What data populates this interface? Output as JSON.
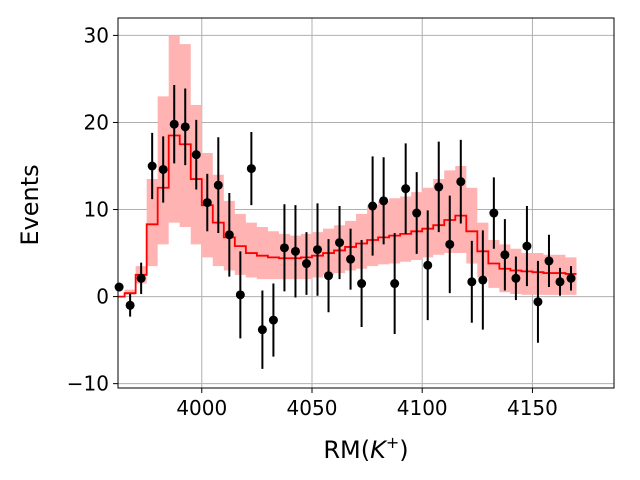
{
  "chart_data": {
    "type": "scatter",
    "title": "",
    "xlabel_main": "RM(",
    "xlabel_var": "K",
    "xlabel_sup": "+",
    "xlabel_end": ")",
    "ylabel": "Events",
    "xlim": [
      3962,
      4187
    ],
    "ylim": [
      -10.5,
      32
    ],
    "grid": true,
    "x_ticks": [
      4000,
      4050,
      4100,
      4150
    ],
    "y_ticks": [
      -10,
      0,
      10,
      20,
      30
    ],
    "x_tick_labels": [
      "4000",
      "4050",
      "4100",
      "4150"
    ],
    "y_tick_labels": [
      "−10",
      "0",
      "10",
      "20",
      "30"
    ],
    "colors": {
      "data": "#000000",
      "model": "#ff0000",
      "band": "#ffb3b3",
      "grid": "#b0b0b0"
    },
    "bin_edges": [
      3960,
      3965,
      3970,
      3975,
      3980,
      3985,
      3990,
      3995,
      4000,
      4005,
      4010,
      4015,
      4020,
      4025,
      4030,
      4035,
      4040,
      4045,
      4050,
      4055,
      4060,
      4065,
      4070,
      4075,
      4080,
      4085,
      4090,
      4095,
      4100,
      4105,
      4110,
      4115,
      4120,
      4125,
      4130,
      4135,
      4140,
      4145,
      4150,
      4155,
      4160,
      4165,
      4170
    ],
    "model": [
      0,
      0.4,
      2.5,
      8.3,
      12.5,
      18.5,
      17.5,
      13.5,
      10.5,
      8.5,
      6.8,
      5.8,
      5.0,
      4.7,
      4.5,
      4.4,
      4.4,
      4.5,
      4.7,
      5.0,
      5.3,
      5.7,
      6.1,
      6.5,
      6.8,
      7.0,
      7.2,
      7.5,
      7.8,
      8.2,
      8.8,
      9.3,
      7.5,
      5.2,
      3.8,
      3.2,
      3.0,
      2.9,
      2.8,
      2.7,
      2.7,
      2.6
    ],
    "band_lower": [
      0,
      0.2,
      1.5,
      3.5,
      6.0,
      8.5,
      8.0,
      6.0,
      4.5,
      3.5,
      3.0,
      2.5,
      2.2,
      2.0,
      2.0,
      2.0,
      2.0,
      2.0,
      2.2,
      2.5,
      2.7,
      3.0,
      3.2,
      3.5,
      3.7,
      3.8,
      4.0,
      4.2,
      4.5,
      4.8,
      5.0,
      5.0,
      3.8,
      2.2,
      1.0,
      0.5,
      0.3,
      0.2,
      0.2,
      0.2,
      0.2,
      0.2
    ],
    "band_upper": [
      0,
      0.8,
      3.5,
      13.5,
      23.0,
      30.0,
      29.0,
      22.0,
      16.5,
      14.0,
      11.0,
      9.5,
      8.5,
      8.0,
      7.5,
      7.2,
      7.0,
      7.2,
      7.4,
      7.8,
      8.2,
      8.7,
      9.5,
      10.5,
      11.0,
      11.3,
      11.5,
      12.0,
      12.5,
      13.5,
      14.5,
      15.0,
      12.5,
      8.5,
      6.5,
      6.0,
      5.5,
      5.0,
      5.0,
      4.8,
      4.8,
      4.5
    ],
    "points": [
      {
        "x": 3962.5,
        "y": 1.1,
        "err": 0
      },
      {
        "x": 3967.5,
        "y": -1.0,
        "err": 1.3
      },
      {
        "x": 3972.5,
        "y": 2.1,
        "err": 1.8
      },
      {
        "x": 3977.5,
        "y": 15.0,
        "err": 3.8
      },
      {
        "x": 3982.5,
        "y": 14.6,
        "err": 3.8
      },
      {
        "x": 3987.5,
        "y": 19.8,
        "err": 4.5
      },
      {
        "x": 3992.5,
        "y": 19.5,
        "err": 4.4
      },
      {
        "x": 3997.5,
        "y": 16.3,
        "err": 4.0
      },
      {
        "x": 4002.5,
        "y": 10.8,
        "err": 3.3
      },
      {
        "x": 4007.5,
        "y": 12.8,
        "err": 5.5
      },
      {
        "x": 4012.5,
        "y": 7.1,
        "err": 4.8
      },
      {
        "x": 4017.5,
        "y": 0.2,
        "err": 5.0
      },
      {
        "x": 4022.5,
        "y": 14.7,
        "err": 4.2
      },
      {
        "x": 4027.5,
        "y": -3.8,
        "err": 4.5
      },
      {
        "x": 4032.5,
        "y": -2.7,
        "err": 4.2
      },
      {
        "x": 4037.5,
        "y": 5.6,
        "err": 5.0
      },
      {
        "x": 4042.5,
        "y": 5.2,
        "err": 5.3
      },
      {
        "x": 4047.5,
        "y": 3.8,
        "err": 3.6
      },
      {
        "x": 4052.5,
        "y": 5.4,
        "err": 5.3
      },
      {
        "x": 4057.5,
        "y": 2.4,
        "err": 4.2
      },
      {
        "x": 4062.5,
        "y": 6.2,
        "err": 4.2
      },
      {
        "x": 4067.5,
        "y": 4.3,
        "err": 3.5
      },
      {
        "x": 4072.5,
        "y": 1.5,
        "err": 5.0
      },
      {
        "x": 4077.5,
        "y": 10.4,
        "err": 5.7
      },
      {
        "x": 4082.5,
        "y": 11.0,
        "err": 5.0
      },
      {
        "x": 4087.5,
        "y": 1.5,
        "err": 5.8
      },
      {
        "x": 4092.5,
        "y": 12.4,
        "err": 5.2
      },
      {
        "x": 4097.5,
        "y": 9.6,
        "err": 4.7
      },
      {
        "x": 4102.5,
        "y": 3.6,
        "err": 6.3
      },
      {
        "x": 4107.5,
        "y": 12.6,
        "err": 5.2
      },
      {
        "x": 4112.5,
        "y": 6.0,
        "err": 5.6
      },
      {
        "x": 4117.5,
        "y": 13.2,
        "err": 4.8
      },
      {
        "x": 4122.5,
        "y": 1.7,
        "err": 4.7
      },
      {
        "x": 4127.5,
        "y": 1.9,
        "err": 5.7
      },
      {
        "x": 4132.5,
        "y": 9.6,
        "err": 4.1
      },
      {
        "x": 4137.5,
        "y": 4.8,
        "err": 4.1
      },
      {
        "x": 4142.5,
        "y": 2.1,
        "err": 2.5
      },
      {
        "x": 4147.5,
        "y": 5.8,
        "err": 4.6
      },
      {
        "x": 4152.5,
        "y": -0.6,
        "err": 4.7
      },
      {
        "x": 4157.5,
        "y": 4.1,
        "err": 3.0
      },
      {
        "x": 4162.5,
        "y": 1.7,
        "err": 1.6
      },
      {
        "x": 4167.5,
        "y": 2.1,
        "err": 1.4
      }
    ]
  }
}
